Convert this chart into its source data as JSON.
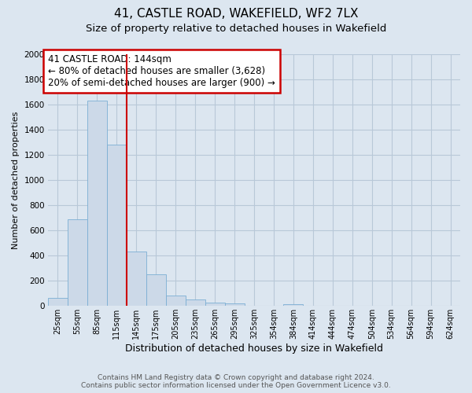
{
  "title": "41, CASTLE ROAD, WAKEFIELD, WF2 7LX",
  "subtitle": "Size of property relative to detached houses in Wakefield",
  "xlabel": "Distribution of detached houses by size in Wakefield",
  "ylabel": "Number of detached properties",
  "bar_categories": [
    "25sqm",
    "55sqm",
    "85sqm",
    "115sqm",
    "145sqm",
    "175sqm",
    "205sqm",
    "235sqm",
    "265sqm",
    "295sqm",
    "325sqm",
    "354sqm",
    "384sqm",
    "414sqm",
    "444sqm",
    "474sqm",
    "504sqm",
    "534sqm",
    "564sqm",
    "594sqm",
    "624sqm"
  ],
  "bar_values": [
    65,
    690,
    1630,
    1280,
    435,
    250,
    85,
    50,
    25,
    20,
    0,
    0,
    15,
    0,
    0,
    0,
    0,
    0,
    0,
    0,
    0
  ],
  "bar_color": "#ccd9e8",
  "bar_edge_color": "#7bafd4",
  "vline_color": "#cc0000",
  "annotation_text": "41 CASTLE ROAD: 144sqm\n← 80% of detached houses are smaller (3,628)\n20% of semi-detached houses are larger (900) →",
  "annotation_box_color": "white",
  "annotation_box_edgecolor": "#cc0000",
  "ylim": [
    0,
    2000
  ],
  "yticks": [
    0,
    200,
    400,
    600,
    800,
    1000,
    1200,
    1400,
    1600,
    1800,
    2000
  ],
  "background_color": "#dce6f0",
  "grid_color": "#b8c8d8",
  "footer_line1": "Contains HM Land Registry data © Crown copyright and database right 2024.",
  "footer_line2": "Contains public sector information licensed under the Open Government Licence v3.0.",
  "title_fontsize": 11,
  "subtitle_fontsize": 9.5,
  "xlabel_fontsize": 9,
  "ylabel_fontsize": 8,
  "tick_fontsize": 7.5,
  "annotation_fontsize": 8.5,
  "footer_fontsize": 6.5
}
